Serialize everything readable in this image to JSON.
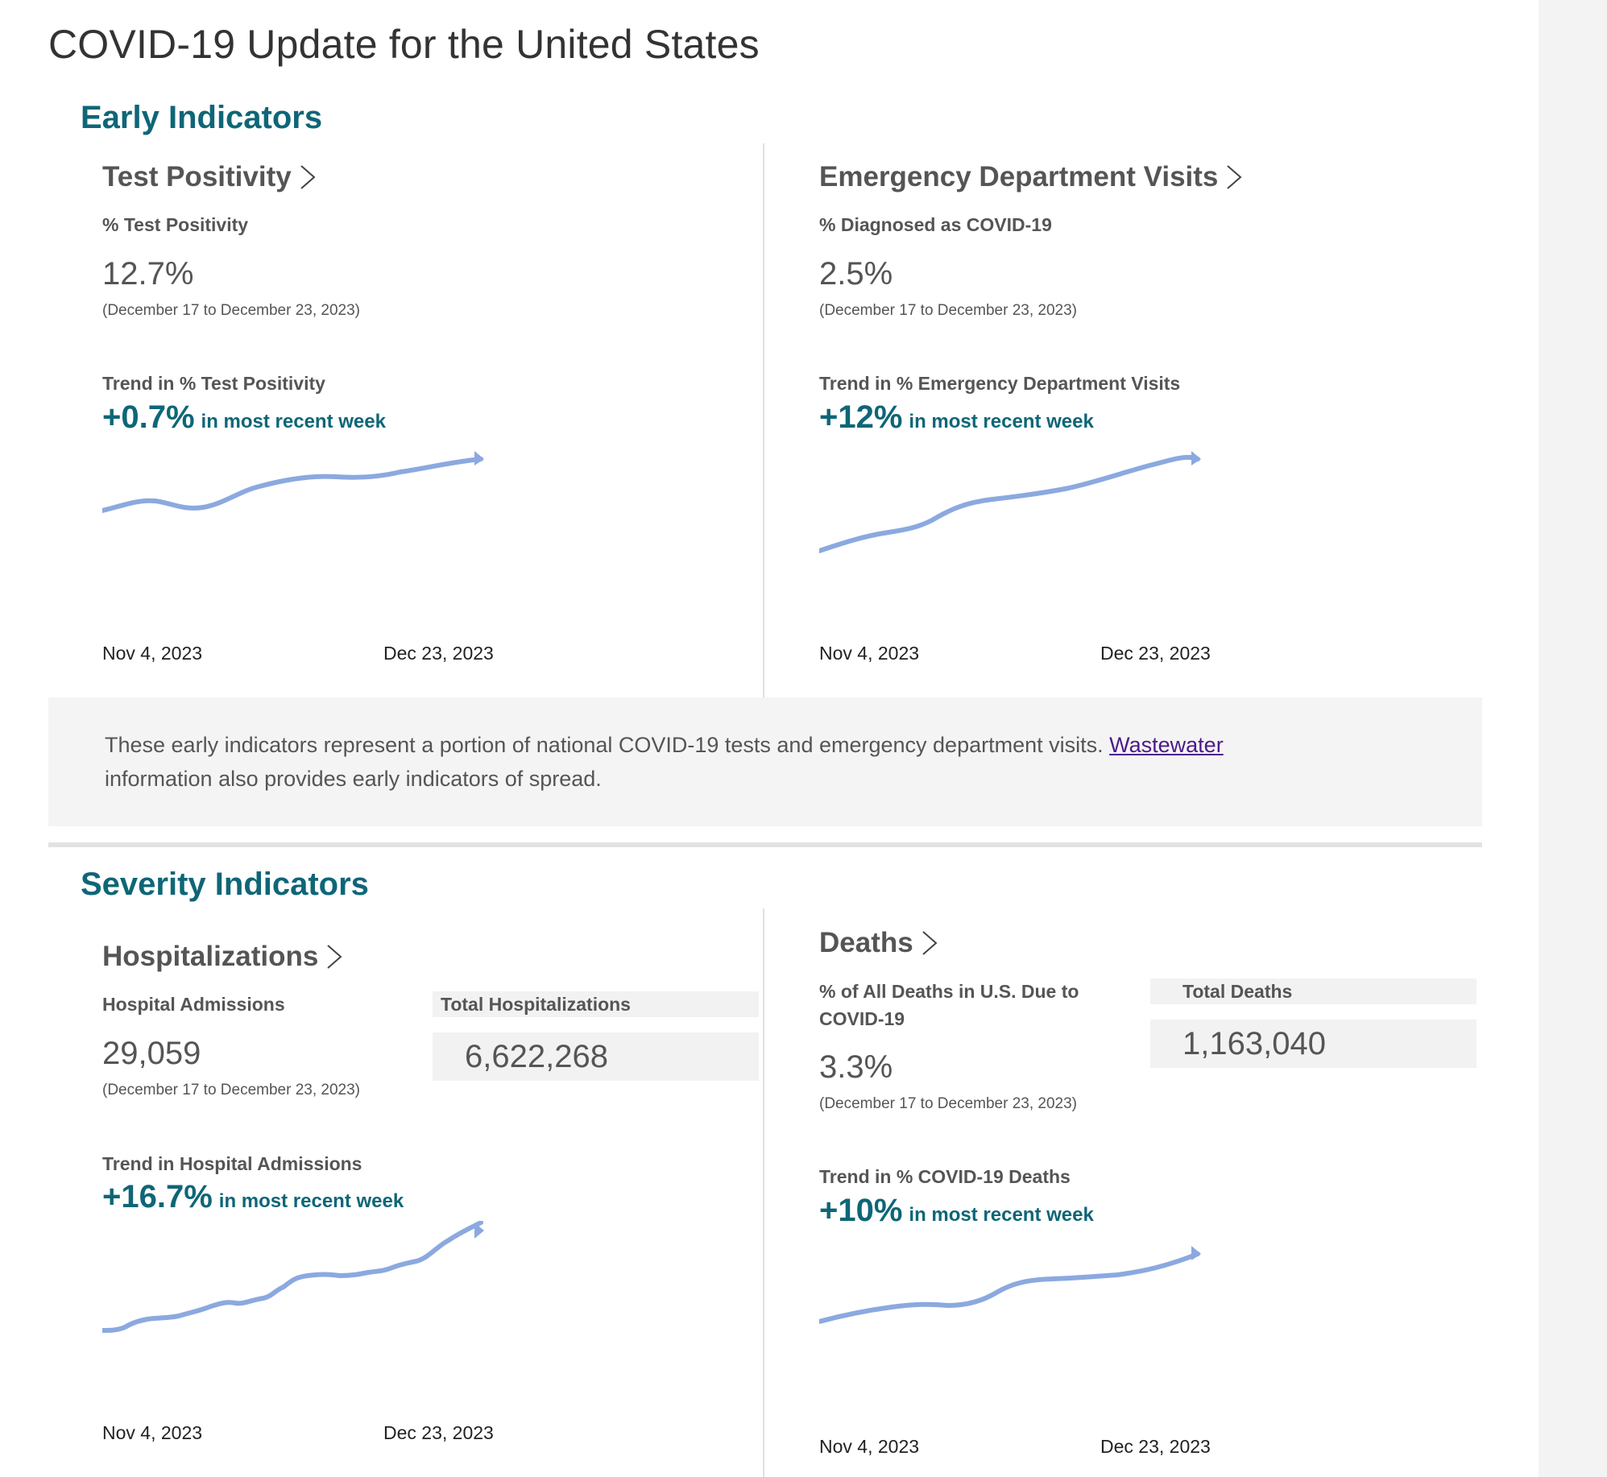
{
  "page_title": "COVID-19 Update for the United States",
  "colors": {
    "accent": "#0e6677",
    "sparkline": "#8ba9e0",
    "link": "#4b1a8a",
    "panel_bg": "#f2f2f2"
  },
  "icons": {
    "panel_link": "chevron-right-icon"
  },
  "early": {
    "section_title": "Early Indicators",
    "test_positivity": {
      "title": "Test Positivity",
      "metric_label": "% Test Positivity",
      "value": "12.7%",
      "date_range": "(December 17 to December 23, 2023)",
      "trend_label": "Trend in % Test Positivity",
      "trend_pct": "+0.7%",
      "trend_suffix": "in most recent week",
      "axis_start": "Nov 4, 2023",
      "axis_end": "Dec 23, 2023"
    },
    "ed_visits": {
      "title": "Emergency Department Visits",
      "metric_label": "% Diagnosed as COVID-19",
      "value": "2.5%",
      "date_range": "(December 17 to December 23, 2023)",
      "trend_label": "Trend in % Emergency Department Visits",
      "trend_pct": "+12%",
      "trend_suffix": "in most recent week",
      "axis_start": "Nov 4, 2023",
      "axis_end": "Dec 23, 2023"
    },
    "info_text": "These early indicators represent a portion of national COVID-19 tests and emergency department visits.",
    "info_link": "Wastewater",
    "info_text_after": "information also provides early indicators of spread."
  },
  "severity": {
    "section_title": "Severity Indicators",
    "hospitalizations": {
      "title": "Hospitalizations",
      "metric_label": "Hospital Admissions",
      "value": "29,059",
      "date_range": "(December 17 to December 23, 2023)",
      "total_label": "Total Hospitalizations",
      "total_value": "6,622,268",
      "trend_label": "Trend in Hospital Admissions",
      "trend_pct": "+16.7%",
      "trend_suffix": "in most recent week",
      "axis_start": "Nov 4, 2023",
      "axis_end": "Dec 23, 2023"
    },
    "deaths": {
      "title": "Deaths",
      "metric_label": "% of All Deaths in U.S. Due to COVID-19",
      "value": "3.3%",
      "date_range": "(December 17 to December 23, 2023)",
      "total_label": "Total Deaths",
      "total_value": "1,163,040",
      "trend_label": "Trend in % COVID-19 Deaths",
      "trend_pct": "+10%",
      "trend_suffix": "in most recent week",
      "axis_start": "Nov 4, 2023",
      "axis_end": "Dec 23, 2023"
    }
  }
}
